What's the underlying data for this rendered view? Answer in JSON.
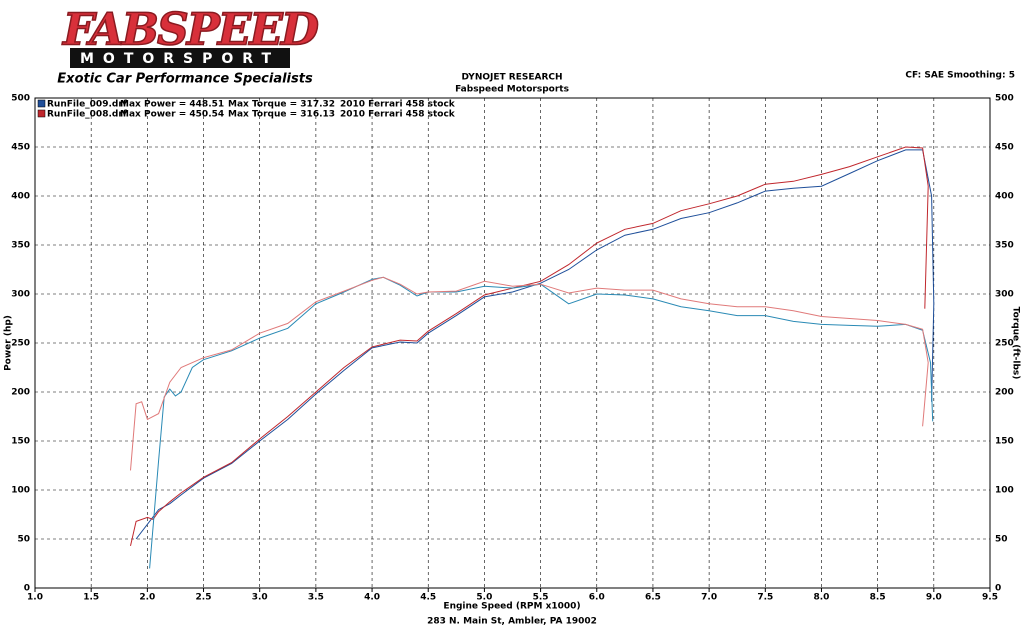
{
  "header": {
    "logo": "FABSPEED",
    "logo_sub": "MOTORSPORT",
    "tagline": "Exotic Car Performance Specialists",
    "title": "DYNOJET RESEARCH",
    "subtitle": "Fabspeed Motorsports",
    "settings": "CF: SAE  Smoothing: 5",
    "footer": "283 N. Main St, Ambler, PA 19002"
  },
  "chart_data": {
    "type": "line",
    "xlabel": "Engine Speed (RPM x1000)",
    "ylabel": "Power (hp)",
    "y2label": "Torque (ft-lbs)",
    "grid": true,
    "xlim": [
      1,
      9.5
    ],
    "ylim": [
      0,
      500
    ],
    "y2lim": [
      0,
      500
    ],
    "xticks": [
      {
        "value": 1,
        "label": "1.0"
      },
      {
        "value": 1.5,
        "label": "1.5"
      },
      {
        "value": 2,
        "label": "2.0"
      },
      {
        "value": 2.5,
        "label": "2.5"
      },
      {
        "value": 3,
        "label": "3.0"
      },
      {
        "value": 3.5,
        "label": "3.5"
      },
      {
        "value": 4,
        "label": "4.0"
      },
      {
        "value": 4.5,
        "label": "4.5"
      },
      {
        "value": 5,
        "label": "5.0"
      },
      {
        "value": 5.5,
        "label": "5.5"
      },
      {
        "value": 6,
        "label": "6.0"
      },
      {
        "value": 6.5,
        "label": "6.5"
      },
      {
        "value": 7,
        "label": "7.0"
      },
      {
        "value": 7.5,
        "label": "7.5"
      },
      {
        "value": 8,
        "label": "8.0"
      },
      {
        "value": 8.5,
        "label": "8.5"
      },
      {
        "value": 9,
        "label": "9.0"
      },
      {
        "value": 9.5,
        "label": "9.5"
      }
    ],
    "yticks": [
      0,
      50,
      100,
      150,
      200,
      250,
      300,
      350,
      400,
      450,
      500
    ],
    "y2ticks": [
      0,
      50,
      100,
      150,
      200,
      250,
      300,
      350,
      400,
      450,
      500
    ],
    "legend": [
      {
        "run": "RunFile_009.drf",
        "power": "Max Power = 448.51",
        "torque": "Max Torque = 317.32",
        "car": "2010 Ferrari 458 stock",
        "color": "#1f4f9a"
      },
      {
        "run": "RunFile_008.drf",
        "power": "Max Power = 450.54",
        "torque": "Max Torque = 316.13",
        "car": "2010 Ferrari 458 stock",
        "color": "#c0272d"
      }
    ],
    "series": [
      {
        "color": "#1f4f9a",
        "x": [
          1.9,
          2.0,
          2.1,
          2.2,
          2.3,
          2.5,
          2.75,
          3.0,
          3.25,
          3.5,
          3.75,
          4.0,
          4.25,
          4.4,
          4.5,
          4.75,
          5.0,
          5.25,
          5.5,
          5.75,
          6.0,
          6.25,
          6.5,
          6.75,
          7.0,
          7.25,
          7.5,
          7.75,
          8.0,
          8.25,
          8.5,
          8.75,
          8.9,
          8.98,
          9.0,
          8.98
        ],
        "values": [
          50,
          65,
          80,
          86,
          95,
          112,
          127,
          150,
          172,
          198,
          222,
          245,
          251,
          250,
          260,
          278,
          297,
          302,
          311,
          325,
          345,
          360,
          366,
          377,
          383,
          393,
          405,
          408,
          410,
          423,
          436,
          447,
          447,
          400,
          290,
          190
        ]
      },
      {
        "color": "#c0272d",
        "x": [
          1.85,
          1.9,
          2.0,
          2.05,
          2.1,
          2.2,
          2.3,
          2.5,
          2.75,
          3.0,
          3.25,
          3.5,
          3.75,
          4.0,
          4.25,
          4.4,
          4.5,
          4.75,
          5.0,
          5.25,
          5.5,
          5.75,
          6.0,
          6.25,
          6.5,
          6.75,
          7.0,
          7.25,
          7.5,
          7.75,
          8.0,
          8.25,
          8.5,
          8.75,
          8.9,
          8.95,
          8.92
        ],
        "values": [
          43,
          68,
          72,
          70,
          78,
          88,
          97,
          113,
          128,
          152,
          175,
          200,
          225,
          246,
          253,
          252,
          262,
          280,
          299,
          306,
          313,
          330,
          352,
          366,
          372,
          385,
          392,
          400,
          412,
          415,
          422,
          430,
          440,
          450,
          449,
          410,
          285
        ]
      },
      {
        "color": "#2a8ab5",
        "axis": "y2",
        "x": [
          2.02,
          2.1,
          2.15,
          2.2,
          2.25,
          2.3,
          2.4,
          2.5,
          2.75,
          3.0,
          3.25,
          3.5,
          3.75,
          4.0,
          4.1,
          4.25,
          4.4,
          4.5,
          4.75,
          5.0,
          5.25,
          5.5,
          5.75,
          6.0,
          6.25,
          6.5,
          6.75,
          7.0,
          7.25,
          7.5,
          7.75,
          8.0,
          8.25,
          8.5,
          8.75,
          8.9,
          8.97,
          8.99
        ],
        "values": [
          20,
          130,
          195,
          203,
          196,
          200,
          225,
          233,
          242,
          255,
          265,
          290,
          302,
          315,
          317,
          309,
          298,
          302,
          302,
          308,
          306,
          310,
          290,
          300,
          299,
          295,
          287,
          283,
          278,
          278,
          272,
          269,
          268,
          267,
          269,
          263,
          230,
          170
        ]
      },
      {
        "color": "#e07a7a",
        "axis": "y2",
        "x": [
          1.85,
          1.9,
          1.95,
          2.0,
          2.1,
          2.2,
          2.3,
          2.5,
          2.75,
          3.0,
          3.25,
          3.5,
          3.75,
          4.0,
          4.1,
          4.25,
          4.4,
          4.5,
          4.75,
          5.0,
          5.25,
          5.5,
          5.75,
          6.0,
          6.25,
          6.5,
          6.75,
          7.0,
          7.25,
          7.5,
          7.75,
          8.0,
          8.25,
          8.5,
          8.75,
          8.9,
          8.95,
          8.9
        ],
        "values": [
          120,
          188,
          190,
          172,
          178,
          210,
          225,
          235,
          243,
          260,
          270,
          292,
          303,
          314,
          317,
          310,
          300,
          302,
          303,
          313,
          308,
          310,
          301,
          306,
          304,
          304,
          295,
          290,
          287,
          287,
          283,
          277,
          275,
          273,
          269,
          264,
          230,
          165
        ]
      }
    ]
  }
}
